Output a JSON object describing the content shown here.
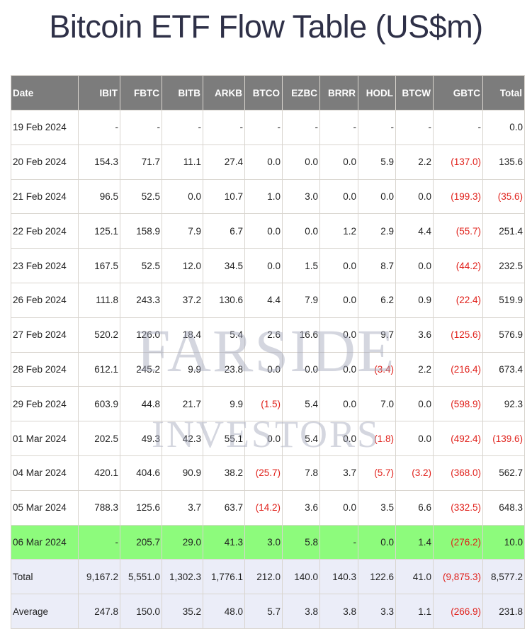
{
  "title": "Bitcoin ETF Flow Table (US$m)",
  "watermark": {
    "line1": "FARSIDE",
    "line2": "INVESTORS"
  },
  "colors": {
    "header_bg": "#7c7c7c",
    "negative": "#e0201a",
    "highlight_row": "#8dfb7c",
    "summary_row": "#ebedf8",
    "title": "#2e3047"
  },
  "table": {
    "headers": [
      "Date",
      "IBIT",
      "FBTC",
      "BITB",
      "ARKB",
      "BTCO",
      "EZBC",
      "BRRR",
      "HODL",
      "BTCW",
      "GBTC",
      "Total"
    ],
    "rows": [
      [
        "19 Feb 2024",
        "-",
        "-",
        "-",
        "-",
        "-",
        "-",
        "-",
        "-",
        "-",
        "-",
        "0.0"
      ],
      [
        "20 Feb 2024",
        "154.3",
        "71.7",
        "11.1",
        "27.4",
        "0.0",
        "0.0",
        "0.0",
        "5.9",
        "2.2",
        "(137.0)",
        "135.6"
      ],
      [
        "21 Feb 2024",
        "96.5",
        "52.5",
        "0.0",
        "10.7",
        "1.0",
        "3.0",
        "0.0",
        "0.0",
        "0.0",
        "(199.3)",
        "(35.6)"
      ],
      [
        "22 Feb 2024",
        "125.1",
        "158.9",
        "7.9",
        "6.7",
        "0.0",
        "0.0",
        "1.2",
        "2.9",
        "4.4",
        "(55.7)",
        "251.4"
      ],
      [
        "23 Feb 2024",
        "167.5",
        "52.5",
        "12.0",
        "34.5",
        "0.0",
        "1.5",
        "0.0",
        "8.7",
        "0.0",
        "(44.2)",
        "232.5"
      ],
      [
        "26 Feb 2024",
        "111.8",
        "243.3",
        "37.2",
        "130.6",
        "4.4",
        "7.9",
        "0.0",
        "6.2",
        "0.9",
        "(22.4)",
        "519.9"
      ],
      [
        "27 Feb 2024",
        "520.2",
        "126.0",
        "18.4",
        "5.4",
        "2.6",
        "16.6",
        "0.0",
        "9.7",
        "3.6",
        "(125.6)",
        "576.9"
      ],
      [
        "28 Feb 2024",
        "612.1",
        "245.2",
        "9.9",
        "23.8",
        "0.0",
        "0.0",
        "0.0",
        "(3.4)",
        "2.2",
        "(216.4)",
        "673.4"
      ],
      [
        "29 Feb 2024",
        "603.9",
        "44.8",
        "21.7",
        "9.9",
        "(1.5)",
        "5.4",
        "0.0",
        "7.0",
        "0.0",
        "(598.9)",
        "92.3"
      ],
      [
        "01 Mar 2024",
        "202.5",
        "49.3",
        "42.3",
        "55.1",
        "0.0",
        "5.4",
        "0.0",
        "(1.8)",
        "0.0",
        "(492.4)",
        "(139.6)"
      ],
      [
        "04 Mar 2024",
        "420.1",
        "404.6",
        "90.9",
        "38.2",
        "(25.7)",
        "7.8",
        "3.7",
        "(5.7)",
        "(3.2)",
        "(368.0)",
        "562.7"
      ],
      [
        "05 Mar 2024",
        "788.3",
        "125.6",
        "3.7",
        "63.7",
        "(14.2)",
        "3.6",
        "0.0",
        "3.5",
        "6.6",
        "(332.5)",
        "648.3"
      ],
      [
        "06 Mar 2024",
        "-",
        "205.7",
        "29.0",
        "41.3",
        "3.0",
        "5.8",
        "-",
        "0.0",
        "1.4",
        "(276.2)",
        "10.0"
      ],
      [
        "Total",
        "9,167.2",
        "5,551.0",
        "1,302.3",
        "1,776.1",
        "212.0",
        "140.0",
        "140.3",
        "122.6",
        "41.0",
        "(9,875.3)",
        "8,577.2"
      ],
      [
        "Average",
        "247.8",
        "150.0",
        "35.2",
        "48.0",
        "5.7",
        "3.8",
        "3.8",
        "3.3",
        "1.1",
        "(266.9)",
        "231.8"
      ]
    ]
  }
}
